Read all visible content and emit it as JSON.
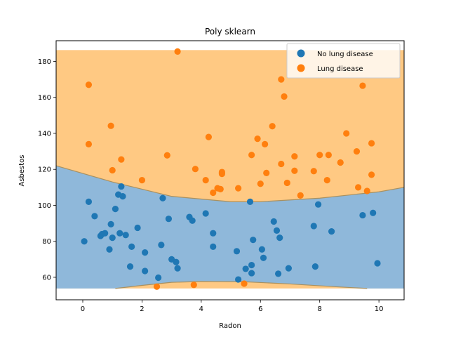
{
  "chart_data": {
    "type": "scatter",
    "title": "Poly sklearn",
    "xlabel": "Radon",
    "ylabel": "Asbestos",
    "xlim": [
      -0.9,
      10.85
    ],
    "ylim": [
      47.5,
      191.5
    ],
    "xticks": [
      0,
      2,
      4,
      6,
      8,
      10
    ],
    "yticks": [
      60,
      80,
      100,
      120,
      140,
      160,
      180
    ],
    "grid": false,
    "legend_position": "top-right",
    "colors": {
      "no_lung_disease": "#1f77b4",
      "lung_disease": "#ff7f0e",
      "region_no_disease": "#8fb8da",
      "region_disease": "#ffc983"
    },
    "decision_region": {
      "x_range": [
        -0.9,
        10.85
      ],
      "y_range": [
        53.8,
        186.3
      ],
      "upper_boundary": [
        [
          -0.9,
          122
        ],
        [
          1,
          113
        ],
        [
          3,
          105
        ],
        [
          5,
          102
        ],
        [
          6,
          102
        ],
        [
          8,
          104
        ],
        [
          10,
          107.5
        ],
        [
          10.85,
          110
        ]
      ],
      "lower_boundary": [
        [
          1.1,
          53.8
        ],
        [
          2,
          55.5
        ],
        [
          3,
          57.2
        ],
        [
          4,
          57.7
        ],
        [
          5.5,
          57.5
        ],
        [
          7,
          56.3
        ],
        [
          8.5,
          54.8
        ],
        [
          9.6,
          53.8
        ]
      ]
    },
    "series": [
      {
        "name": "No lung disease",
        "color": "#1f77b4",
        "points": [
          [
            0.05,
            80
          ],
          [
            0.2,
            102
          ],
          [
            0.4,
            94
          ],
          [
            0.6,
            83
          ],
          [
            0.65,
            84
          ],
          [
            0.75,
            84.5
          ],
          [
            0.9,
            75.5
          ],
          [
            0.95,
            89.5
          ],
          [
            1.0,
            82
          ],
          [
            1.1,
            98
          ],
          [
            1.2,
            106
          ],
          [
            1.25,
            84.5
          ],
          [
            1.3,
            110.5
          ],
          [
            1.35,
            105
          ],
          [
            1.45,
            83.5
          ],
          [
            1.6,
            66
          ],
          [
            1.65,
            77
          ],
          [
            1.85,
            87.5
          ],
          [
            2.1,
            73.8
          ],
          [
            2.1,
            63.5
          ],
          [
            2.55,
            59.8
          ],
          [
            2.65,
            78
          ],
          [
            2.7,
            104
          ],
          [
            2.9,
            92.5
          ],
          [
            3.0,
            70
          ],
          [
            3.15,
            68.5
          ],
          [
            3.2,
            65
          ],
          [
            3.6,
            93.5
          ],
          [
            3.7,
            91.5
          ],
          [
            4.15,
            95.5
          ],
          [
            4.4,
            77
          ],
          [
            4.4,
            84.5
          ],
          [
            5.2,
            74.5
          ],
          [
            5.25,
            58.8
          ],
          [
            5.5,
            64.7
          ],
          [
            5.65,
            102
          ],
          [
            5.7,
            66.8
          ],
          [
            5.7,
            62.3
          ],
          [
            5.75,
            80.8
          ],
          [
            6.05,
            75.5
          ],
          [
            6.1,
            70.8
          ],
          [
            6.45,
            91
          ],
          [
            6.55,
            86
          ],
          [
            6.6,
            62
          ],
          [
            6.65,
            82
          ],
          [
            6.95,
            65
          ],
          [
            7.8,
            88.5
          ],
          [
            7.85,
            66
          ],
          [
            7.95,
            100.5
          ],
          [
            8.4,
            85.5
          ],
          [
            9.45,
            94.5
          ],
          [
            9.8,
            95.8
          ],
          [
            9.95,
            67.8
          ]
        ]
      },
      {
        "name": "Lung disease",
        "color": "#ff7f0e",
        "points": [
          [
            0.2,
            167
          ],
          [
            0.2,
            134
          ],
          [
            0.95,
            144.2
          ],
          [
            1.0,
            119.5
          ],
          [
            1.3,
            125.5
          ],
          [
            2.0,
            114
          ],
          [
            2.5,
            54.8
          ],
          [
            2.85,
            127.8
          ],
          [
            3.2,
            185.5
          ],
          [
            3.75,
            55.8
          ],
          [
            3.8,
            120.2
          ],
          [
            4.15,
            114
          ],
          [
            4.25,
            138
          ],
          [
            4.4,
            107
          ],
          [
            4.55,
            109.5
          ],
          [
            4.65,
            109
          ],
          [
            4.7,
            117.5
          ],
          [
            4.7,
            118.5
          ],
          [
            5.25,
            109.5
          ],
          [
            5.45,
            56.5
          ],
          [
            5.7,
            128
          ],
          [
            5.9,
            137
          ],
          [
            6.0,
            112
          ],
          [
            6.15,
            134
          ],
          [
            6.2,
            118
          ],
          [
            6.4,
            144
          ],
          [
            6.7,
            123
          ],
          [
            6.7,
            170
          ],
          [
            6.8,
            160.5
          ],
          [
            6.9,
            112.5
          ],
          [
            7.15,
            127.2
          ],
          [
            7.15,
            119.2
          ],
          [
            7.35,
            105.5
          ],
          [
            7.8,
            119
          ],
          [
            8.0,
            128
          ],
          [
            8.25,
            114
          ],
          [
            8.3,
            128
          ],
          [
            8.7,
            123.8
          ],
          [
            8.9,
            140
          ],
          [
            9.25,
            130
          ],
          [
            9.3,
            110
          ],
          [
            9.45,
            166.5
          ],
          [
            9.6,
            108
          ],
          [
            9.75,
            134.5
          ],
          [
            9.75,
            117
          ]
        ]
      }
    ]
  }
}
